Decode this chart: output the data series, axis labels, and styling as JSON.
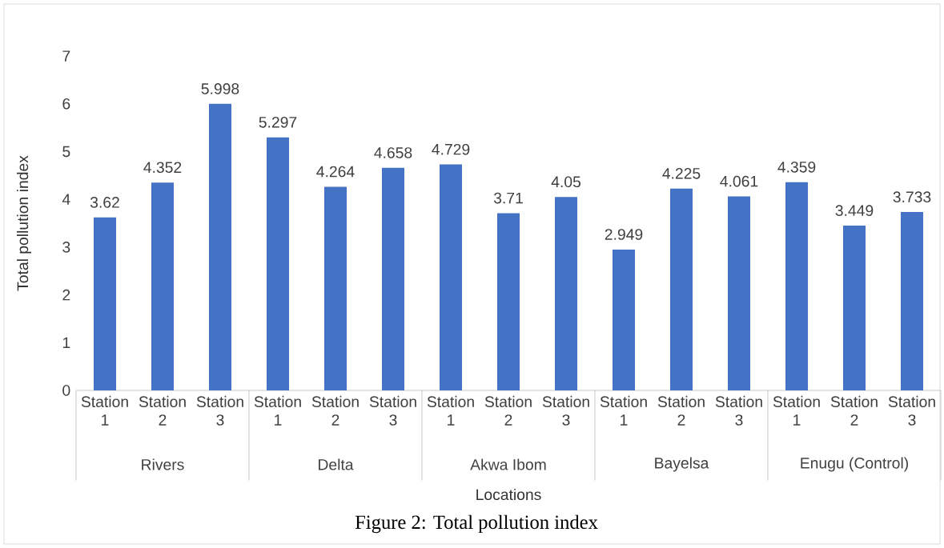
{
  "chart_data": {
    "type": "bar",
    "title": "Figure 2: Total pollution index",
    "xlabel": "Locations",
    "ylabel": "Total pollution index",
    "categories": [
      "Station 1",
      "Station 2",
      "Station 3",
      "Station 1",
      "Station 2",
      "Station 3",
      "Station 1",
      "Station 2",
      "Station 3",
      "Station 1",
      "Station 2",
      "Station 3",
      "Station 1",
      "Station 2",
      "Station 3"
    ],
    "values": [
      3.62,
      4.352,
      5.998,
      5.297,
      4.264,
      4.658,
      4.729,
      3.71,
      4.05,
      2.949,
      4.225,
      4.061,
      4.359,
      3.449,
      3.733
    ],
    "value_labels": [
      "3.62",
      "4.352",
      "5.998",
      "5.297",
      "4.264",
      "4.658",
      "4.729",
      "3.71",
      "4.05",
      "2.949",
      "4.225",
      "4.061",
      "4.359",
      "3.449",
      "3.733"
    ],
    "annotations": [
      "Rivers",
      "Delta",
      "Akwa Ibom",
      "Bayelsa",
      "Enugu (Control)"
    ],
    "color": "#4472c4",
    "ylim": [
      0,
      7
    ],
    "yticks": [
      0,
      1,
      2,
      3,
      4,
      5,
      6,
      7
    ]
  }
}
